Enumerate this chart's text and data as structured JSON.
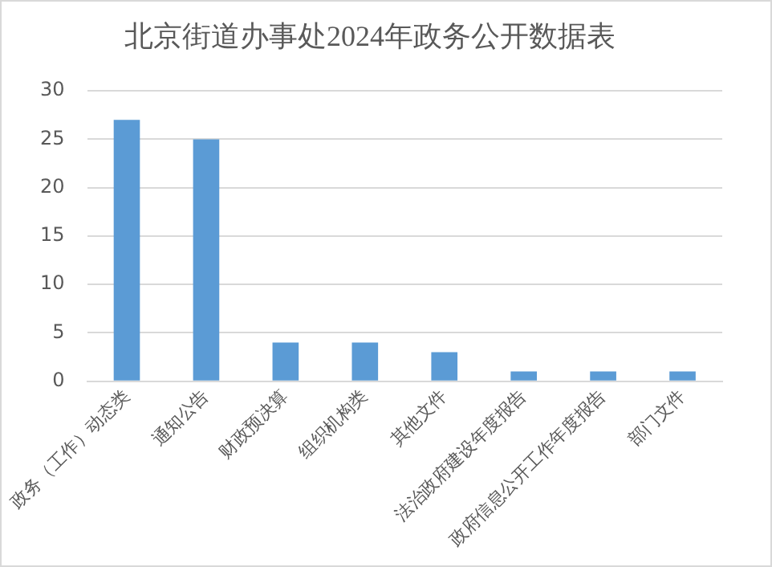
{
  "chart_data": {
    "type": "bar",
    "title": "北京街道办事处2024年政务公开数据表",
    "categories": [
      "政务（工作）动态类",
      "通知公告",
      "财政预决算",
      "组织机构类",
      "其他文件",
      "法治政府建设年度报告",
      "政府信息公开工作年度报告",
      "部门文件"
    ],
    "values": [
      27,
      25,
      4,
      4,
      3,
      1,
      1,
      1
    ],
    "color": "#5b9bd5",
    "ylim": [
      0,
      30
    ],
    "yticks": [
      0,
      5,
      10,
      15,
      20,
      25,
      30
    ],
    "grid": "y"
  }
}
